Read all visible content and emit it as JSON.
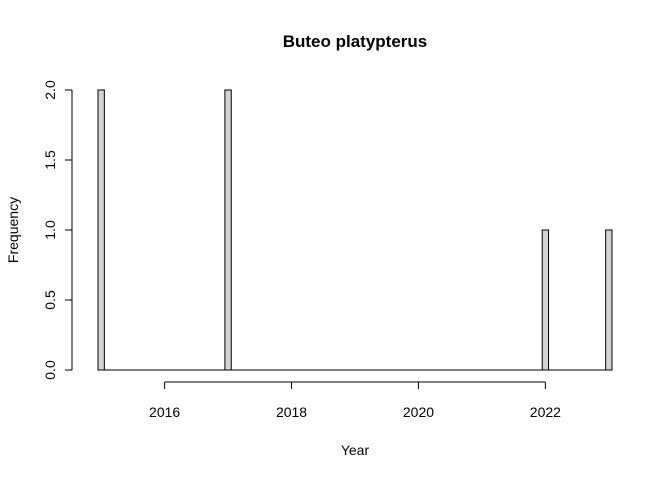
{
  "chart_data": {
    "type": "bar",
    "title": "Buteo platypterus",
    "xlabel": "Year",
    "ylabel": "Frequency",
    "x_ticks": [
      2016,
      2018,
      2020,
      2022
    ],
    "y_ticks": [
      "0.0",
      "0.5",
      "1.0",
      "1.5",
      "2.0"
    ],
    "xlim": [
      2015,
      2023
    ],
    "ylim": [
      0,
      2
    ],
    "bin_width": 0.1,
    "bars": [
      {
        "x": 2015.0,
        "value": 2
      },
      {
        "x": 2017.0,
        "value": 2
      },
      {
        "x": 2022.0,
        "value": 1
      },
      {
        "x": 2023.0,
        "value": 1
      }
    ],
    "bar_fill": "#d3d3d3",
    "grid": false
  }
}
